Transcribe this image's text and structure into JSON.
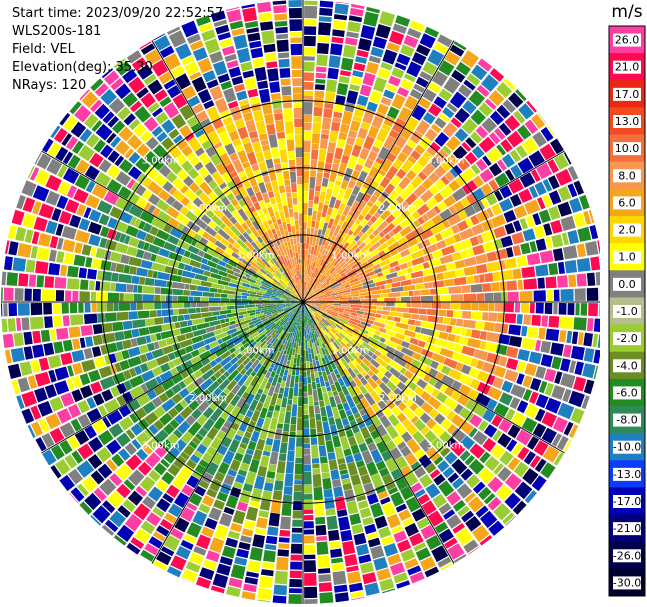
{
  "header": {
    "start_time": "Start time: 2023/09/20 22:52:57",
    "instrument": "WLS200s-181",
    "field": "Field: VEL",
    "elevation": "Elevation(deg): 35.30",
    "nrays": "NRays: 120"
  },
  "chart_data": {
    "type": "heatmap",
    "projection": "polar-ppi",
    "title": "",
    "n_rays": 120,
    "range_rings_km": [
      1.0,
      2.0,
      3.0
    ],
    "ring_labels": [
      "1.00km",
      "2.00km",
      "3.00km"
    ],
    "max_range_km": 4.5,
    "spokes": 12,
    "colorbar": {
      "unit": "m/s",
      "ticks": [
        "26.0",
        "21.0",
        "17.0",
        "13.0",
        "10.0",
        "8.0",
        "6.0",
        "2.0",
        "1.0",
        "0.0",
        "-1.0",
        "-2.0",
        "-4.0",
        "-6.0",
        "-8.0",
        "-10.0",
        "-13.0",
        "-17.0",
        "-21.0",
        "-26.0",
        "-30.0"
      ],
      "colors": [
        "#ff3ea3",
        "#ff0a50",
        "#ea2814",
        "#f24b22",
        "#f56e3c",
        "#f89850",
        "#f7a51a",
        "#ffd700",
        "#ffff00",
        "#808080",
        "#b5bd8a",
        "#9acd32",
        "#6b8e23",
        "#228b22",
        "#2e8b57",
        "#1e7fc1",
        "#0b3cff",
        "#0000b4",
        "#000078",
        "#00004b",
        "#000030"
      ]
    },
    "pattern": "near field: positive velocities (yellow/orange/red) toward north and east, negative velocities (greens, small blue patch) toward south and west; beyond ~3 km noisy multi-colour returns",
    "colors": {
      "positive": [
        "#ffff00",
        "#ffd700",
        "#f7a51a",
        "#f89850",
        "#f56e3c"
      ],
      "negative": [
        "#9acd32",
        "#6b8e23",
        "#228b22",
        "#2e8b57",
        "#1e7fc1"
      ],
      "noise": [
        "#ff0a50",
        "#ff3ea3",
        "#0000b4",
        "#00004b",
        "#228b22",
        "#ffff00",
        "#808080",
        "#9acd32",
        "#f7a51a",
        "#1e7fc1",
        "#000078"
      ]
    }
  }
}
